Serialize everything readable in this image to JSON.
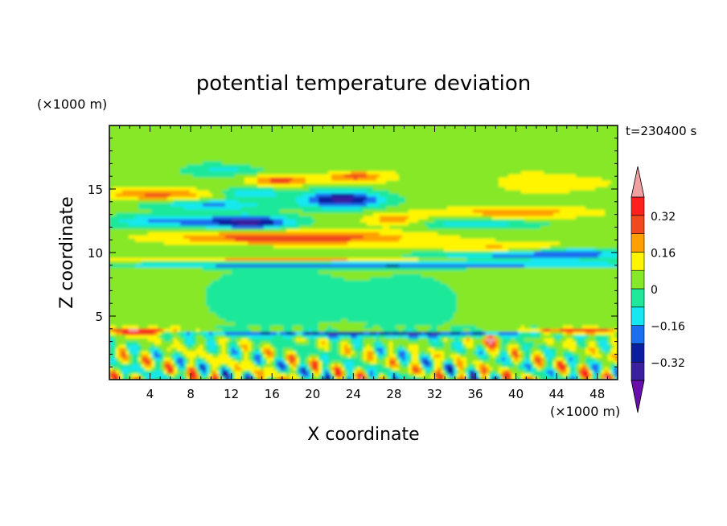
{
  "chart_data": {
    "type": "heatmap",
    "title": "potential temperature deviation",
    "time_label": "t=230400 s",
    "xlabel": "X coordinate",
    "ylabel": "Z coordinate",
    "x_unit": "(×1000 m)",
    "y_unit": "(×1000 m)",
    "xlim": [
      0,
      50
    ],
    "ylim": [
      0,
      20
    ],
    "x_ticks": [
      4,
      8,
      12,
      16,
      20,
      24,
      28,
      32,
      36,
      40,
      44,
      48
    ],
    "y_ticks": [
      5,
      10,
      15
    ],
    "colorbar": {
      "levels": [
        -0.4,
        -0.32,
        -0.24,
        -0.16,
        -0.08,
        0,
        0.08,
        0.16,
        0.24,
        0.32,
        0.4
      ],
      "tick_labels": [
        "0.32",
        "0.16",
        "0",
        "−0.16",
        "−0.32"
      ],
      "tick_values": [
        0.32,
        0.16,
        0,
        -0.16,
        -0.32
      ],
      "colors": [
        "#6a0dad",
        "#3a1f9e",
        "#0a1fa0",
        "#1a6ef0",
        "#14e8f0",
        "#1ee89a",
        "#86e828",
        "#fff500",
        "#ffa000",
        "#f04a1e",
        "#ff1f1f",
        "#f0a0a0"
      ]
    },
    "features": [
      {
        "name": "upper warm band",
        "z": 11.5,
        "x": [
          10,
          26
        ],
        "value": 0.3
      },
      {
        "name": "upper cold core",
        "z": 12.5,
        "x": [
          12,
          16
        ],
        "value": -0.38
      },
      {
        "name": "upper cold core",
        "z": 14,
        "x": [
          20,
          26
        ],
        "value": -0.38
      },
      {
        "name": "cold streak",
        "z": 9.2,
        "x": [
          2,
          50
        ],
        "value": -0.34
      },
      {
        "name": "boundary-layer cold line",
        "z": 3.6,
        "x": [
          5,
          50
        ],
        "value": -0.3
      },
      {
        "name": "warm patches",
        "z": 3.8,
        "x": [
          0,
          6
        ],
        "value": 0.42
      },
      {
        "name": "warm patches",
        "z": 3.8,
        "x": [
          42,
          50
        ],
        "value": 0.4
      }
    ]
  }
}
